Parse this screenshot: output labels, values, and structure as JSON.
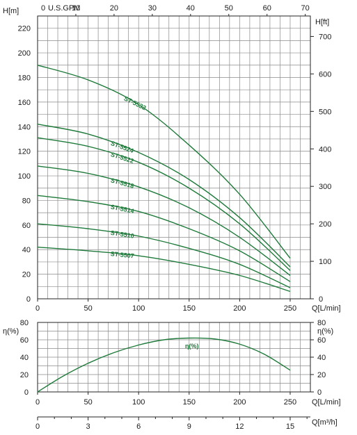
{
  "chart_data": [
    {
      "type": "line",
      "title": "",
      "top_axis": {
        "unit_label": "U.S.GPM",
        "unit_prefix": "0",
        "ticks": [
          "10",
          "20",
          "30",
          "40",
          "50",
          "60",
          "70"
        ]
      },
      "x": {
        "label": "Q[L/min]",
        "range": [
          0,
          270
        ],
        "ticks": [
          "0",
          "50",
          "100",
          "150",
          "200",
          "250"
        ]
      },
      "y_left": {
        "label": "H[m]",
        "range": [
          0,
          230
        ],
        "ticks": [
          "0",
          "20",
          "40",
          "60",
          "80",
          "100",
          "120",
          "140",
          "160",
          "180",
          "200",
          "220"
        ]
      },
      "y_right": {
        "label": "H[ft]",
        "ticks": [
          "0",
          "100",
          "200",
          "300",
          "400",
          "500",
          "600",
          "700"
        ]
      },
      "grid": true,
      "series": [
        {
          "name": "ST-5532",
          "x": [
            0,
            50,
            100,
            150,
            200,
            250
          ],
          "y": [
            190,
            178,
            158,
            125,
            85,
            33
          ],
          "color": "#1e7a3a"
        },
        {
          "name": "ST-5524",
          "x": [
            0,
            50,
            100,
            150,
            200,
            250
          ],
          "y": [
            142,
            134,
            119,
            97,
            66,
            26
          ],
          "color": "#1e7a3a"
        },
        {
          "name": "ST-5522",
          "x": [
            0,
            50,
            100,
            150,
            200,
            250
          ],
          "y": [
            131,
            124,
            111,
            90,
            61,
            23
          ],
          "color": "#1e7a3a"
        },
        {
          "name": "ST-5518",
          "x": [
            0,
            50,
            100,
            150,
            200,
            250
          ],
          "y": [
            108,
            102,
            91,
            74,
            50,
            19
          ],
          "color": "#1e7a3a"
        },
        {
          "name": "ST-5514",
          "x": [
            0,
            50,
            100,
            150,
            200,
            250
          ],
          "y": [
            84,
            79,
            71,
            57,
            39,
            14
          ],
          "color": "#1e7a3a"
        },
        {
          "name": "ST-5510",
          "x": [
            0,
            50,
            100,
            150,
            200,
            250
          ],
          "y": [
            61,
            57,
            51,
            41,
            28,
            9
          ],
          "color": "#1e7a3a"
        },
        {
          "name": "ST-5507",
          "x": [
            0,
            50,
            100,
            150,
            200,
            250
          ],
          "y": [
            42,
            39,
            35,
            28,
            19,
            6
          ],
          "color": "#1e7a3a"
        }
      ]
    },
    {
      "type": "line",
      "title": "",
      "x": {
        "label": "Q[L/min]",
        "range": [
          0,
          270
        ],
        "ticks": [
          "0",
          "50",
          "100",
          "150",
          "200",
          "250"
        ]
      },
      "y_left": {
        "label": "η(%)",
        "range": [
          0,
          80
        ],
        "ticks": [
          "0",
          "20",
          "40",
          "60",
          "80"
        ]
      },
      "y_right": {
        "label": "η(%)",
        "ticks": [
          "0",
          "20",
          "40",
          "60",
          "80"
        ]
      },
      "grid": true,
      "series": [
        {
          "name": "η(%)",
          "x": [
            0,
            25,
            50,
            75,
            100,
            125,
            150,
            175,
            200,
            225,
            250
          ],
          "y": [
            0,
            18,
            33,
            45,
            54,
            60,
            62,
            61,
            55,
            43,
            25
          ],
          "color": "#1e7a3a"
        }
      ],
      "bottom_axis": {
        "label": "Q[m³/h]",
        "ticks": [
          "0",
          "3",
          "6",
          "9",
          "12",
          "15"
        ]
      }
    }
  ]
}
